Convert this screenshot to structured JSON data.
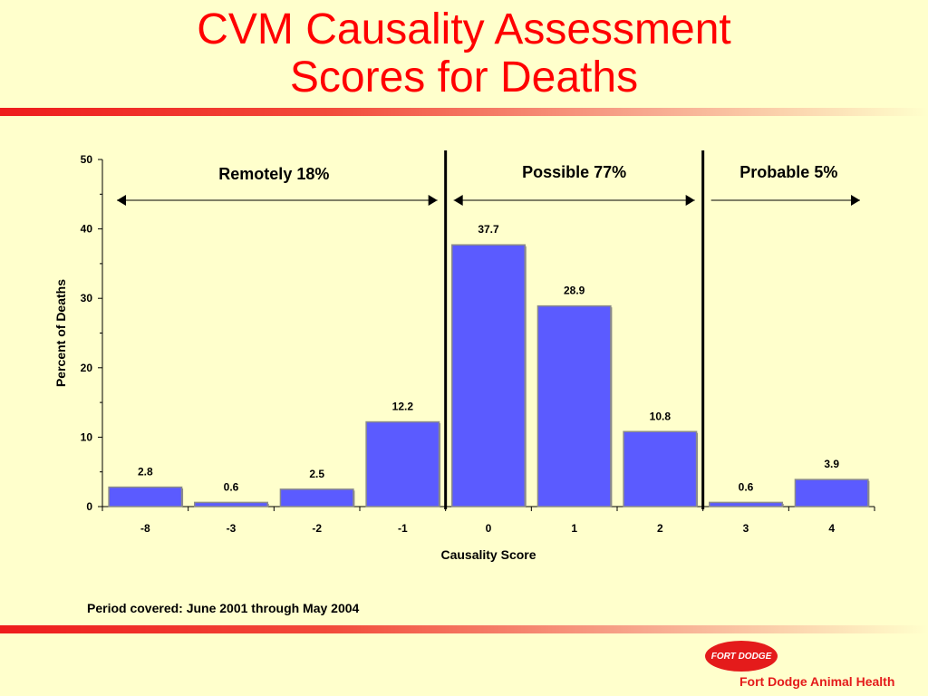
{
  "slide": {
    "title_line1": "CVM Causality Assessment",
    "title_line2": "Scores for Deaths",
    "footnote": "Period covered:  June 2001 through May 2004",
    "logo_text": "FORT DODGE",
    "company_name": "Fort Dodge Animal Health"
  },
  "colors": {
    "title": "#FF0000",
    "background": "#FFFFCC",
    "bar_fill": "#5B5BFF",
    "bar_edge": "#8A8A8A",
    "brand": "#E41B1B"
  },
  "chart_data": {
    "type": "bar",
    "title": "",
    "xlabel": "Causality Score",
    "ylabel": "Percent of Deaths",
    "ylim": [
      0,
      50
    ],
    "yticks": [
      0,
      10,
      20,
      30,
      40,
      50
    ],
    "categories": [
      "-8",
      "-3",
      "-2",
      "-1",
      "0",
      "1",
      "2",
      "3",
      "4"
    ],
    "values": [
      2.8,
      0.6,
      2.5,
      12.2,
      37.7,
      28.9,
      10.8,
      0.6,
      3.9
    ],
    "data_labels": [
      "2.8",
      "0.6",
      "2.5",
      "12.2",
      "37.7",
      "28.9",
      "10.8",
      "0.6",
      "3.9"
    ],
    "grid": false,
    "groups": [
      {
        "label": "Remotely 18%",
        "from_index": 0,
        "to_index": 3
      },
      {
        "label": "Possible 77%",
        "from_index": 4,
        "to_index": 6
      },
      {
        "label": "Probable 5%",
        "from_index": 7,
        "to_index": 8
      }
    ]
  }
}
